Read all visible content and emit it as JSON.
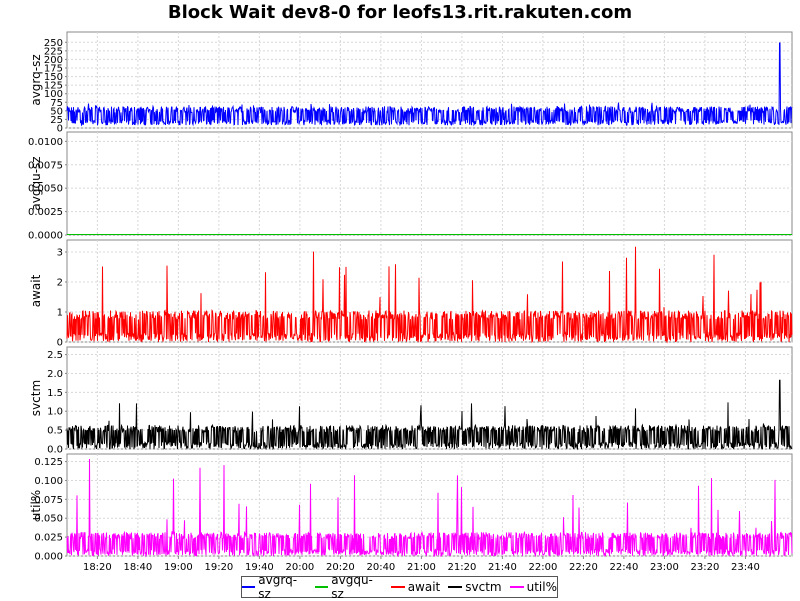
{
  "chart_data": {
    "type": "line",
    "title": "Block Wait dev8-0 for leofs13.rit.rakuten.com",
    "x_ticks": [
      "18:20",
      "18:40",
      "19:00",
      "19:20",
      "19:40",
      "20:00",
      "20:20",
      "20:40",
      "21:00",
      "21:20",
      "21:40",
      "22:00",
      "22:20",
      "22:40",
      "23:00",
      "23:20",
      "23:40"
    ],
    "xlim": [
      "18:05",
      "0:03"
    ],
    "grid": true,
    "legend_placement": "bottom-center",
    "panels": [
      {
        "series": "avgrq-sz",
        "ylabel": "avgrq-sz",
        "color": "#0000ff",
        "ylim": [
          0,
          280
        ],
        "y_ticks": [
          "0",
          "25",
          "50",
          "75",
          "100",
          "125",
          "150",
          "175",
          "200",
          "225",
          "250"
        ],
        "y_tick_values": [
          0,
          25,
          50,
          75,
          100,
          125,
          150,
          175,
          200,
          225,
          250
        ],
        "base": 8,
        "typical": 60,
        "spike_max": 78,
        "peak": {
          "x": "23:57",
          "y": 248
        }
      },
      {
        "series": "avgqu-sz",
        "ylabel": "avgqu-sz",
        "color": "#00c000",
        "ylim": [
          0,
          0.011
        ],
        "y_ticks": [
          "0.0000",
          "0.0025",
          "0.0050",
          "0.0075",
          "0.0100"
        ],
        "y_tick_values": [
          0,
          0.0025,
          0.005,
          0.0075,
          0.01
        ],
        "constant": 0
      },
      {
        "series": "await",
        "ylabel": "await",
        "color": "#ff0000",
        "ylim": [
          0,
          3.4
        ],
        "y_ticks": [
          "0",
          "1",
          "2",
          "3"
        ],
        "y_tick_values": [
          0,
          1,
          2,
          3
        ],
        "base": 0,
        "typical": 1.0,
        "spike_max": 3.3
      },
      {
        "series": "svctm",
        "ylabel": "svctm",
        "color": "#000000",
        "ylim": [
          0,
          2.7
        ],
        "y_ticks": [
          "0.0",
          "0.5",
          "1.0",
          "1.5",
          "2.0",
          "2.5"
        ],
        "y_tick_values": [
          0,
          0.5,
          1.0,
          1.5,
          2.0,
          2.5
        ],
        "base": 0,
        "typical": 0.6,
        "spike_max": 1.25,
        "peak": {
          "x": "23:57",
          "y": 1.82
        }
      },
      {
        "series": "util%",
        "ylabel": "util%",
        "color": "#ff00ff",
        "ylim": [
          0,
          0.135
        ],
        "y_ticks": [
          "0.000",
          "0.025",
          "0.050",
          "0.075",
          "0.100",
          "0.125"
        ],
        "y_tick_values": [
          0,
          0.025,
          0.05,
          0.075,
          0.1,
          0.125
        ],
        "base": 0,
        "typical": 0.03,
        "spike_max": 0.13
      }
    ],
    "legend": [
      {
        "name": "avgrq-sz",
        "color": "#0000ff"
      },
      {
        "name": "avgqu-sz",
        "color": "#00c000"
      },
      {
        "name": "await",
        "color": "#ff0000"
      },
      {
        "name": "svctm",
        "color": "#000000"
      },
      {
        "name": "util%",
        "color": "#ff00ff"
      }
    ]
  }
}
